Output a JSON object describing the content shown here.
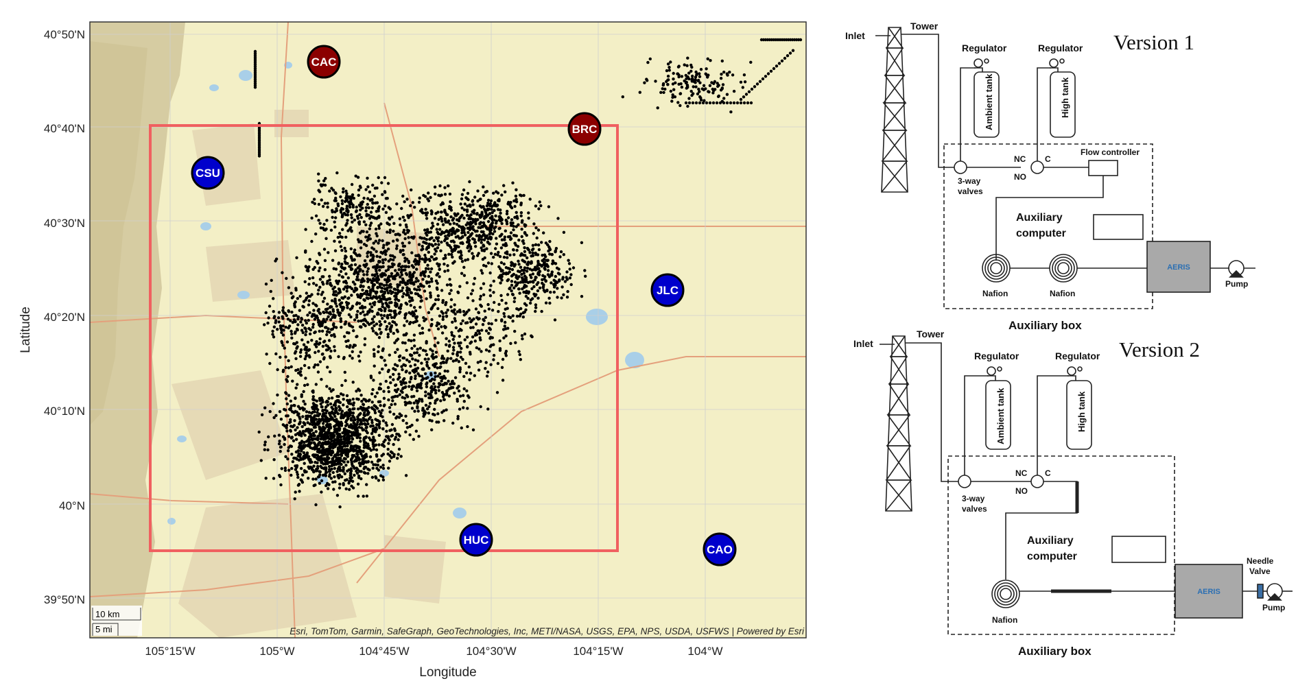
{
  "map": {
    "axis": {
      "x_label": "Longitude",
      "y_label": "Latitude",
      "x_ticks": [
        "105°15'W",
        "105°W",
        "104°45'W",
        "104°30'W",
        "104°15'W",
        "104°W"
      ],
      "y_ticks": [
        "40°50'N",
        "40°40'N",
        "40°30'N",
        "40°20'N",
        "40°10'N",
        "40°N",
        "39°50'N"
      ]
    },
    "attribution": "Esri, TomTom, Garmin, SafeGraph, GeoTechnologies, Inc, METI/NASA, USGS, EPA, NPS, USDA, USFWS | Powered by Esri",
    "scale": {
      "km": "10 km",
      "mi": "5 mi"
    },
    "stations": [
      {
        "code": "CAC",
        "color": "#8b0000"
      },
      {
        "code": "BRC",
        "color": "#8b0000"
      },
      {
        "code": "CSU",
        "color": "#0000cc"
      },
      {
        "code": "JLC",
        "color": "#0000cc"
      },
      {
        "code": "HUC",
        "color": "#0000cc"
      },
      {
        "code": "CAO",
        "color": "#0000cc"
      }
    ],
    "colors": {
      "box": "#f06060",
      "land": "#f3efc6",
      "mountain": "#d6cca2",
      "urban": "#e4d8b4",
      "water": "#a9cfe8"
    }
  },
  "v1": {
    "title": "Version 1",
    "inlet": "Inlet",
    "tower": "Tower",
    "reg1": "Regulator",
    "reg2": "Regulator",
    "ambient": "Ambient tank",
    "high": "High tank",
    "nc": "NC",
    "c": "C",
    "no": "NO",
    "valves_1": "3-way",
    "valves_2": "valves",
    "flow": "Flow controller",
    "aux1": "Auxiliary",
    "aux2": "computer",
    "nafion1": "Nafion",
    "nafion2": "Nafion",
    "aeris": "AERIS",
    "pump": "Pump",
    "box": "Auxiliary box"
  },
  "v2": {
    "title": "Version 2",
    "inlet": "Inlet",
    "tower": "Tower",
    "reg1": "Regulator",
    "reg2": "Regulator",
    "ambient": "Ambient tank",
    "high": "High tank",
    "nc": "NC",
    "c": "C",
    "no": "NO",
    "valves_1": "3-way",
    "valves_2": "valves",
    "aux1": "Auxiliary",
    "aux2": "computer",
    "nafion": "Nafion",
    "needle1": "Needle",
    "needle2": "Valve",
    "aeris": "AERIS",
    "pump": "Pump",
    "box": "Auxiliary box"
  }
}
